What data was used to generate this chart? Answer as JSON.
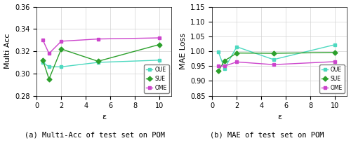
{
  "x": [
    0.5,
    1,
    2,
    5,
    10
  ],
  "plot_a": {
    "OUE": [
      0.31,
      0.306,
      0.306,
      0.31,
      0.312
    ],
    "SUE": [
      0.312,
      0.295,
      0.322,
      0.311,
      0.326
    ],
    "OME": [
      0.33,
      0.318,
      0.329,
      0.331,
      0.332
    ]
  },
  "plot_b": {
    "OUE": [
      0.998,
      0.942,
      1.015,
      0.972,
      1.022
    ],
    "SUE": [
      0.933,
      0.968,
      0.994,
      0.993,
      0.996
    ],
    "OME": [
      0.95,
      0.95,
      0.964,
      0.955,
      0.965
    ]
  },
  "colors": {
    "OUE": "#4dd9c0",
    "SUE": "#2ca02c",
    "OME": "#cc44cc"
  },
  "markers": {
    "OUE": "s",
    "SUE": "D",
    "OME": "s"
  },
  "ylim_a": [
    0.28,
    0.36
  ],
  "yticks_a": [
    0.28,
    0.3,
    0.32,
    0.34,
    0.36
  ],
  "ylim_b": [
    0.85,
    1.15
  ],
  "yticks_b": [
    0.85,
    0.9,
    0.95,
    1.0,
    1.05,
    1.1,
    1.15
  ],
  "xlabel": "ε",
  "ylabel_a": "Multi Acc",
  "ylabel_b": "MAE Loss",
  "caption_a": "(a) Multi-Acc of test set on POM",
  "caption_b": "(b) MAE of test set on POM",
  "xticks": [
    0,
    2,
    4,
    6,
    8,
    10
  ],
  "xlim": [
    0,
    11
  ]
}
